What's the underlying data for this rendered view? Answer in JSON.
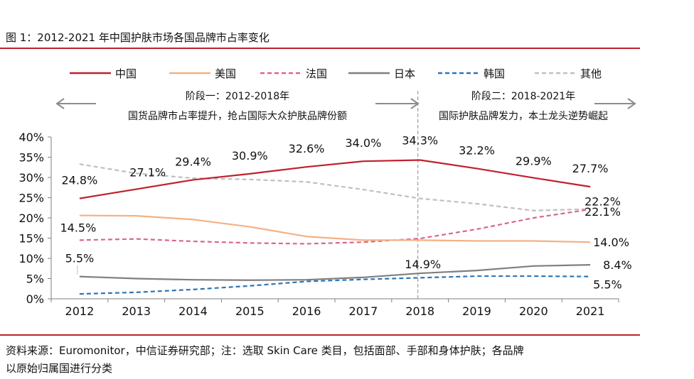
{
  "figure": {
    "title": "图 1：2012-2021 年中国护肤市场各国品牌市占率变化",
    "source_line1": "资料来源：Euromonitor，中信证券研究部；注：选取 Skin Care 类目，包括面部、手部和身体护肤；各品牌",
    "source_line2": "以原始归属国进行分类"
  },
  "chart_data": {
    "type": "line",
    "categories": [
      "2012",
      "2013",
      "2014",
      "2015",
      "2016",
      "2017",
      "2018",
      "2019",
      "2020",
      "2021"
    ],
    "ylim": [
      0,
      40
    ],
    "yticks": [
      0,
      5,
      10,
      15,
      20,
      25,
      30,
      35,
      40
    ],
    "ytick_labels": [
      "0%",
      "5%",
      "10%",
      "15%",
      "20%",
      "25%",
      "30%",
      "35%",
      "40%"
    ],
    "xlabel": "",
    "ylabel": "",
    "grid": false,
    "legend_position": "top",
    "series": [
      {
        "name": "中国",
        "color": "#c0212b",
        "dash": "solid",
        "values": [
          24.8,
          27.1,
          29.4,
          30.9,
          32.6,
          34.0,
          34.3,
          32.2,
          29.9,
          27.7
        ]
      },
      {
        "name": "美国",
        "color": "#f4b183",
        "dash": "solid",
        "values": [
          20.6,
          20.5,
          19.6,
          17.8,
          15.4,
          14.5,
          14.5,
          14.3,
          14.3,
          14.0
        ]
      },
      {
        "name": "法国",
        "color": "#d9678a",
        "dash": "dashed",
        "values": [
          14.5,
          14.8,
          14.2,
          13.8,
          13.6,
          14.0,
          14.9,
          17.2,
          20.0,
          22.1
        ]
      },
      {
        "name": "日本",
        "color": "#7f7f7f",
        "dash": "solid",
        "values": [
          5.5,
          5.0,
          4.7,
          4.6,
          4.7,
          5.3,
          6.3,
          7.0,
          8.1,
          8.4
        ]
      },
      {
        "name": "韩国",
        "color": "#2e75b6",
        "dash": "dashed",
        "values": [
          1.2,
          1.6,
          2.3,
          3.2,
          4.3,
          4.8,
          5.2,
          5.6,
          5.6,
          5.5
        ]
      },
      {
        "name": "其他",
        "color": "#bfbfbf",
        "dash": "dashed",
        "values": [
          33.3,
          31.0,
          29.8,
          29.5,
          28.9,
          27.0,
          24.8,
          23.5,
          21.8,
          22.2
        ]
      }
    ],
    "data_labels": [
      {
        "text": "24.8%",
        "series": "中国",
        "index": 0
      },
      {
        "text": "27.1%",
        "series": "中国",
        "index": 1
      },
      {
        "text": "29.4%",
        "series": "中国",
        "index": 2
      },
      {
        "text": "30.9%",
        "series": "中国",
        "index": 3
      },
      {
        "text": "32.6%",
        "series": "中国",
        "index": 4
      },
      {
        "text": "34.0%",
        "series": "中国",
        "index": 5
      },
      {
        "text": "34.3%",
        "series": "中国",
        "index": 6
      },
      {
        "text": "32.2%",
        "series": "中国",
        "index": 7
      },
      {
        "text": "29.9%",
        "series": "中国",
        "index": 8
      },
      {
        "text": "27.7%",
        "series": "中国",
        "index": 9
      },
      {
        "text": "14.5%",
        "series": "法国",
        "index": 0
      },
      {
        "text": "14.9%",
        "series": "法国",
        "index": 6
      },
      {
        "text": "5.5%",
        "series": "日本",
        "index": 0
      },
      {
        "text": "22.2%",
        "series": "其他",
        "index": 9
      },
      {
        "text": "22.1%",
        "series": "法国",
        "index": 9
      },
      {
        "text": "14.0%",
        "series": "美国",
        "index": 9
      },
      {
        "text": "8.4%",
        "series": "日本",
        "index": 9
      },
      {
        "text": "5.5%",
        "series": "韩国",
        "index": 9
      }
    ],
    "annotations": {
      "phase1_title": "阶段一：2012-2018年",
      "phase1_desc": "国货品牌市占率提升，抢占国际大众护肤品牌份额",
      "phase2_title": "阶段二：2018-2021年",
      "phase2_desc": "国际护肤品牌发力，本土龙头逆势崛起",
      "divider_category": "2018"
    }
  }
}
